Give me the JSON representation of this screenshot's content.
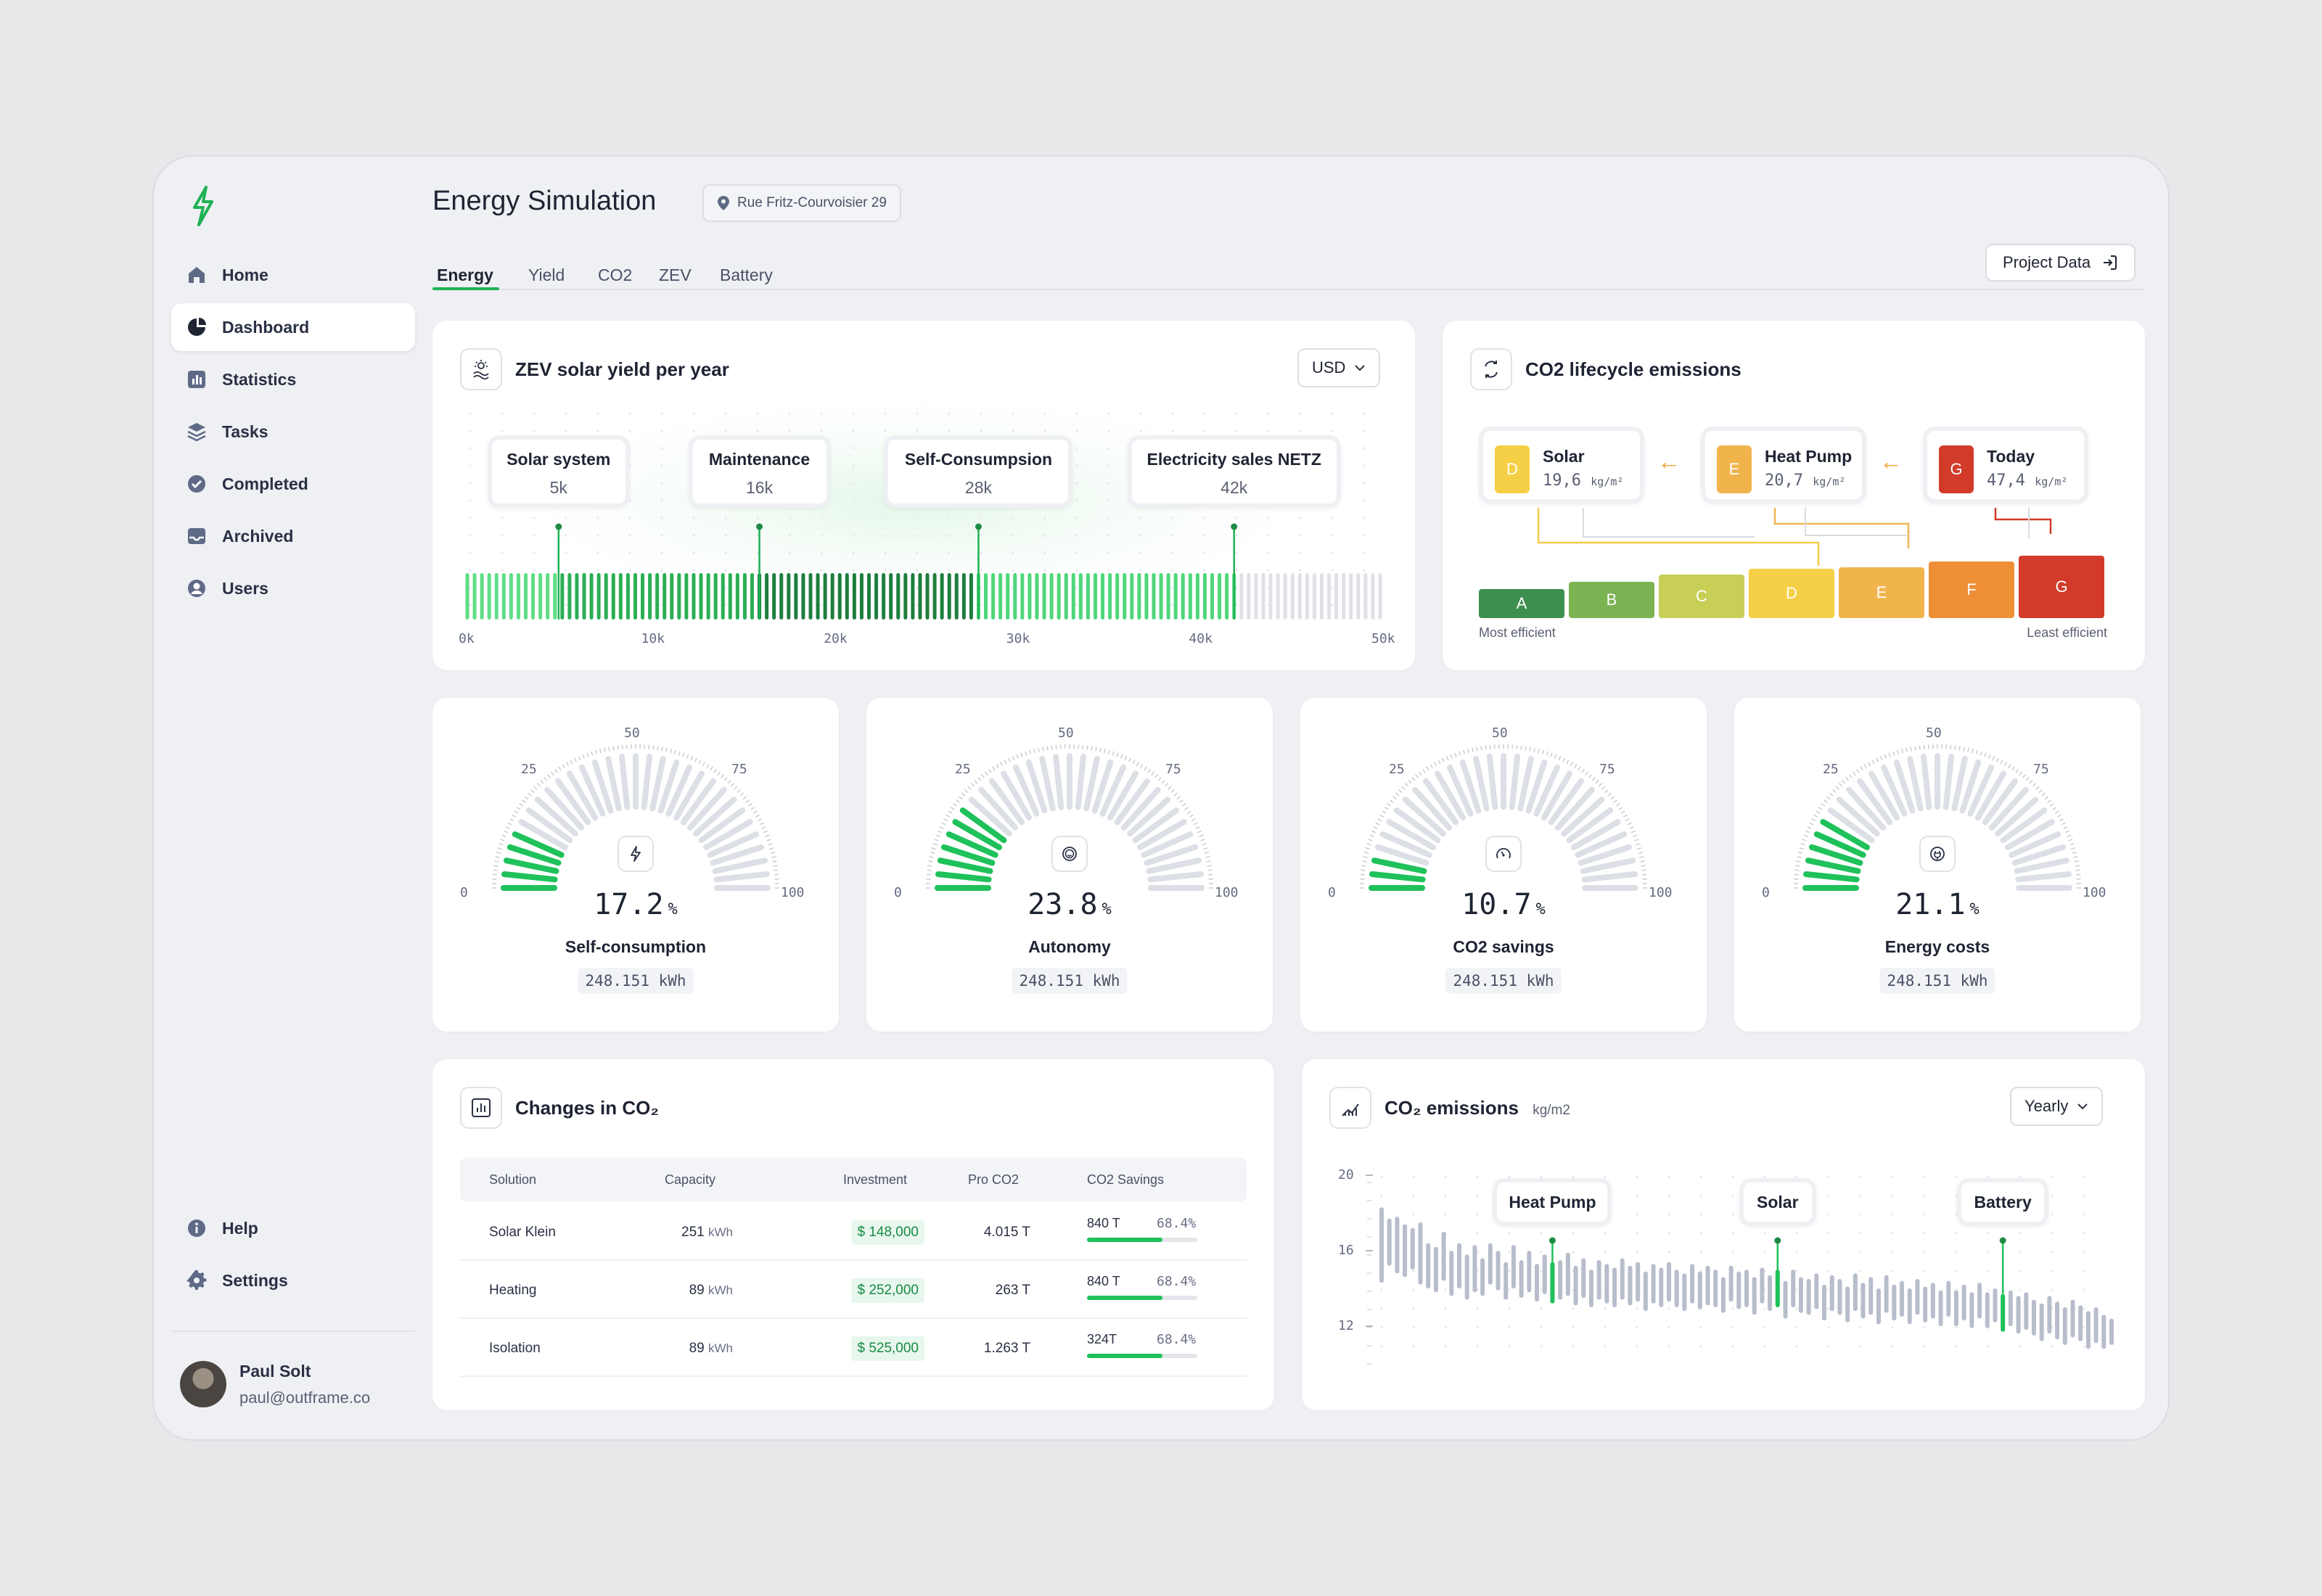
{
  "app": {
    "title": "Energy Simulation",
    "location": "Rue Fritz-Courvoisier 29"
  },
  "nav": {
    "items": [
      {
        "label": "Home",
        "icon": "home-icon"
      },
      {
        "label": "Dashboard",
        "icon": "pie-chart-icon",
        "active": true
      },
      {
        "label": "Statistics",
        "icon": "bar-chart-icon"
      },
      {
        "label": "Tasks",
        "icon": "layers-icon"
      },
      {
        "label": "Completed",
        "icon": "check-circle-icon"
      },
      {
        "label": "Archived",
        "icon": "inbox-icon"
      },
      {
        "label": "Users",
        "icon": "user-circle-icon"
      }
    ],
    "bottom": [
      {
        "label": "Help",
        "icon": "info-icon"
      },
      {
        "label": "Settings",
        "icon": "gear-icon"
      }
    ]
  },
  "user": {
    "name": "Paul Solt",
    "email": "paul@outframe.co"
  },
  "tabs": [
    "Energy",
    "Yield",
    "CO2",
    "ZEV",
    "Battery"
  ],
  "project_button": "Project Data",
  "zev_card": {
    "title": "ZEV solar yield per year",
    "currency": "USD",
    "callouts": [
      {
        "name": "Solar system",
        "value": "5k"
      },
      {
        "name": "Maintenance",
        "value": "16k"
      },
      {
        "name": "Self-Consumpsion",
        "value": "28k"
      },
      {
        "name": "Electricity sales NETZ",
        "value": "42k"
      }
    ],
    "axis": [
      "0k",
      "10k",
      "20k",
      "30k",
      "40k",
      "50k"
    ],
    "accent": "#1fb255"
  },
  "co2_card": {
    "title": "CO2 lifecycle emissions",
    "boxes": [
      {
        "letter": "D",
        "name": "Solar",
        "value": "19,6",
        "unit": "kg/m²",
        "color": "#f5cf45"
      },
      {
        "letter": "E",
        "name": "Heat Pump",
        "value": "20,7",
        "unit": "kg/m²",
        "color": "#f1b44c"
      },
      {
        "letter": "G",
        "name": "Today",
        "value": "47,4",
        "unit": "kg/m²",
        "color": "#d23a2a"
      }
    ],
    "classes": [
      {
        "letter": "A",
        "color": "#3c8f4e"
      },
      {
        "letter": "B",
        "color": "#7bb352"
      },
      {
        "letter": "C",
        "color": "#c7cf56"
      },
      {
        "letter": "D",
        "color": "#f5cf45"
      },
      {
        "letter": "E",
        "color": "#f1b44c"
      },
      {
        "letter": "F",
        "color": "#ee8f36"
      },
      {
        "letter": "G",
        "color": "#d23a2a"
      }
    ],
    "left_label": "Most efficient",
    "right_label": "Least efficient"
  },
  "gauges": [
    {
      "value": "17.2",
      "pct": 17.2,
      "name": "Self-consumption",
      "sub": "248.151 kWh",
      "icon": "bolt-icon"
    },
    {
      "value": "23.8",
      "pct": 23.8,
      "name": "Autonomy",
      "sub": "248.151 kWh",
      "icon": "smile-icon"
    },
    {
      "value": "10.7",
      "pct": 10.7,
      "name": "CO2 savings",
      "sub": "248.151 kWh",
      "icon": "speedometer-icon"
    },
    {
      "value": "21.1",
      "pct": 21.1,
      "name": "Energy costs",
      "sub": "248.151 kWh",
      "icon": "plug-icon"
    }
  ],
  "gauge_ticks": {
    "t0": "0",
    "t25": "25",
    "t50": "50",
    "t75": "75",
    "t100": "100",
    "unit": "%"
  },
  "changes": {
    "title": "Changes in CO₂",
    "headers": [
      "Solution",
      "Capacity",
      "Investment",
      "Pro CO2",
      "CO2 Savings"
    ],
    "rows": [
      {
        "solution": "Solar Klein",
        "capacity": "251",
        "cap_unit": "kWh",
        "investment": "$ 148,000",
        "pro": "4.015 T",
        "savings": "840 T",
        "pct": "68.4%",
        "fill": 0.684
      },
      {
        "solution": "Heating",
        "capacity": "89",
        "cap_unit": "kWh",
        "investment": "$ 252,000",
        "pro": "263 T",
        "savings": "840 T",
        "pct": "68.4%",
        "fill": 0.684
      },
      {
        "solution": "Isolation",
        "capacity": "89",
        "cap_unit": "kWh",
        "investment": "$ 525,000",
        "pro": "1.263 T",
        "savings": "324T",
        "pct": "68.4%",
        "fill": 0.684
      }
    ]
  },
  "emissions": {
    "title": "CO₂ emissions",
    "unit": "kg/m2",
    "period": "Yearly",
    "markers": [
      "Heat Pump",
      "Solar",
      "Battery"
    ]
  },
  "chart_data": [
    {
      "type": "bar",
      "title": "ZEV solar yield per year",
      "xlim": [
        0,
        50
      ],
      "xlabel": "",
      "x_ticks": [
        "0k",
        "10k",
        "20k",
        "30k",
        "40k",
        "50k"
      ],
      "annotations": [
        {
          "label": "Solar system",
          "x": 5,
          "value": "5k"
        },
        {
          "label": "Maintenance",
          "x": 16,
          "value": "16k"
        },
        {
          "label": "Self-Consumpsion",
          "x": 28,
          "value": "28k"
        },
        {
          "label": "Electricity sales NETZ",
          "x": 42,
          "value": "42k"
        }
      ],
      "filled_until": 42
    },
    {
      "type": "bar",
      "title": "CO₂ emissions",
      "ylabel": "kg/m2",
      "ylim": [
        10,
        20
      ],
      "y_ticks": [
        "20",
        "16",
        "12"
      ],
      "series": [
        {
          "low": [
            14.3,
            15.2,
            14.8,
            14.6,
            15.0,
            14.2,
            14.0,
            13.8,
            14.4,
            13.6,
            14.0,
            13.4,
            13.8,
            13.6,
            14.2,
            13.9,
            13.4,
            14.0,
            13.5,
            13.8,
            13.3,
            13.7,
            13.2,
            13.4,
            13.6,
            13.1,
            13.5,
            13.0,
            13.4,
            13.2,
            13.0,
            13.4,
            13.1,
            13.3,
            12.8,
            13.2,
            13.0,
            13.3,
            13.0,
            12.8,
            13.2,
            12.9,
            13.1,
            13.0,
            12.7,
            13.3,
            12.9,
            13.0,
            12.6,
            13.2,
            12.8,
            13.0,
            12.4,
            13.0,
            12.7,
            12.6,
            12.9,
            12.3,
            12.8,
            12.6,
            12.2,
            12.8,
            12.4,
            12.6,
            12.1,
            12.7,
            12.3,
            12.5,
            12.1,
            12.6,
            12.2,
            12.4,
            12.0,
            12.5,
            12.0,
            12.3,
            11.9,
            12.4,
            11.9,
            12.2,
            11.7,
            12.0,
            11.6,
            11.8,
            11.5,
            11.2,
            11.6,
            11.3,
            11.0,
            11.4,
            11.2,
            10.8,
            11.1,
            10.8,
            11.0
          ],
          "high": [
            18.3,
            17.7,
            17.8,
            17.4,
            17.2,
            17.5,
            16.4,
            16.2,
            17.0,
            16.0,
            16.4,
            15.8,
            16.3,
            15.6,
            16.4,
            16.0,
            15.4,
            16.3,
            15.5,
            16.0,
            15.3,
            15.8,
            15.4,
            15.5,
            15.9,
            15.2,
            15.6,
            15.0,
            15.5,
            15.3,
            15.1,
            15.6,
            15.2,
            15.4,
            14.9,
            15.3,
            15.1,
            15.4,
            15.0,
            14.8,
            15.3,
            14.9,
            15.2,
            15.0,
            14.6,
            15.2,
            14.9,
            15.0,
            14.6,
            15.1,
            14.7,
            15.0,
            14.4,
            15.0,
            14.6,
            14.5,
            14.8,
            14.2,
            14.7,
            14.5,
            14.1,
            14.8,
            14.3,
            14.6,
            14.0,
            14.7,
            14.2,
            14.4,
            14.0,
            14.5,
            14.1,
            14.3,
            13.9,
            14.4,
            13.9,
            14.2,
            13.8,
            14.3,
            13.8,
            14.0,
            13.7,
            13.9,
            13.6,
            13.8,
            13.4,
            13.2,
            13.6,
            13.3,
            13.0,
            13.4,
            13.1,
            12.8,
            13.0,
            12.6,
            12.4
          ]
        },
        {
          "markers": [
            {
              "label": "Heat Pump",
              "index": 22
            },
            {
              "label": "Solar",
              "index": 51
            },
            {
              "label": "Battery",
              "index": 80
            }
          ]
        }
      ]
    }
  ]
}
